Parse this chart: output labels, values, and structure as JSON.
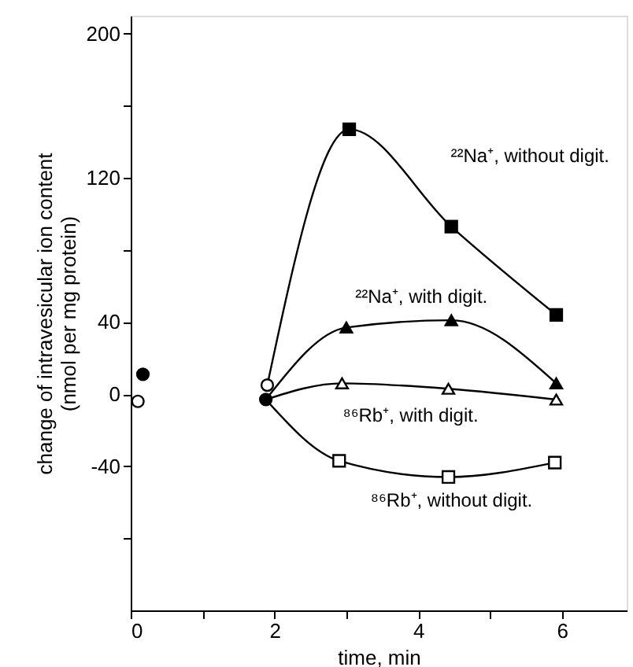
{
  "chart_data": {
    "type": "scatter",
    "xlabel": "time, min",
    "ylabel": "change of intravesicular ion content\n(nmol per mg protein)",
    "xlim": [
      0,
      6.9
    ],
    "ylim": [
      -120,
      210
    ],
    "xticks": [
      0,
      {
        "value": 1,
        "label": null
      },
      2,
      {
        "value": 3,
        "label": null
      },
      4,
      {
        "value": 5,
        "label": null
      },
      6
    ],
    "yticks": [
      {
        "value": -80,
        "label": null
      },
      -40,
      0,
      40,
      {
        "value": 80,
        "label": null
      },
      120,
      {
        "value": 160,
        "label": null
      },
      200
    ],
    "grid": false,
    "series": [
      {
        "name": "²²Na⁺, without digit.",
        "type": "line",
        "marker": "none",
        "line_style": "solid",
        "color": "#000000",
        "x": [
          1.9,
          3.04,
          4.46,
          5.92
        ],
        "values": [
          5,
          147,
          93,
          44
        ]
      },
      {
        "name": "²²Na⁺, with digit.",
        "type": "line",
        "marker": "none",
        "line_style": "solid",
        "color": "#000000",
        "x": [
          1.88,
          3.0,
          4.46,
          5.92
        ],
        "values": [
          -3,
          37,
          41,
          6
        ]
      },
      {
        "name": "⁸⁶Rb⁺, with digit.",
        "type": "line",
        "marker": "none",
        "line_style": "solid",
        "color": "#000000",
        "x": [
          1.88,
          2.94,
          4.42,
          5.92
        ],
        "values": [
          -3,
          6,
          3,
          -3
        ]
      },
      {
        "name": "⁸⁶Rb⁺, without digit.",
        "type": "line",
        "marker": "none",
        "line_style": "solid",
        "color": "#000000",
        "x": [
          1.88,
          2.9,
          4.42,
          5.9
        ],
        "values": [
          -3,
          -37,
          -46,
          -38
        ]
      },
      {
        "marker": "square",
        "color": "#000000",
        "x": [
          3.04,
          4.46,
          5.92
        ],
        "values": [
          147,
          93,
          44
        ]
      },
      {
        "marker": "triangle",
        "color": "#000000",
        "x": [
          3.0,
          4.46,
          5.92
        ],
        "values": [
          37,
          41,
          6
        ]
      },
      {
        "marker": "triangle",
        "color": "#ffffff",
        "x": [
          2.94,
          4.42,
          5.92
        ],
        "values": [
          6,
          3,
          -3
        ]
      },
      {
        "marker": "square",
        "color": "#ffffff",
        "x": [
          2.9,
          4.42,
          5.9
        ],
        "values": [
          -37,
          -46,
          -38
        ]
      },
      {
        "marker": "circle",
        "color": "#000000",
        "x": [
          0.17,
          1.88
        ],
        "values": [
          11,
          -3
        ]
      },
      {
        "marker": "circle",
        "color": "#ffffff",
        "x": [
          0.1,
          1.9
        ],
        "values": [
          -4,
          5
        ]
      }
    ]
  }
}
